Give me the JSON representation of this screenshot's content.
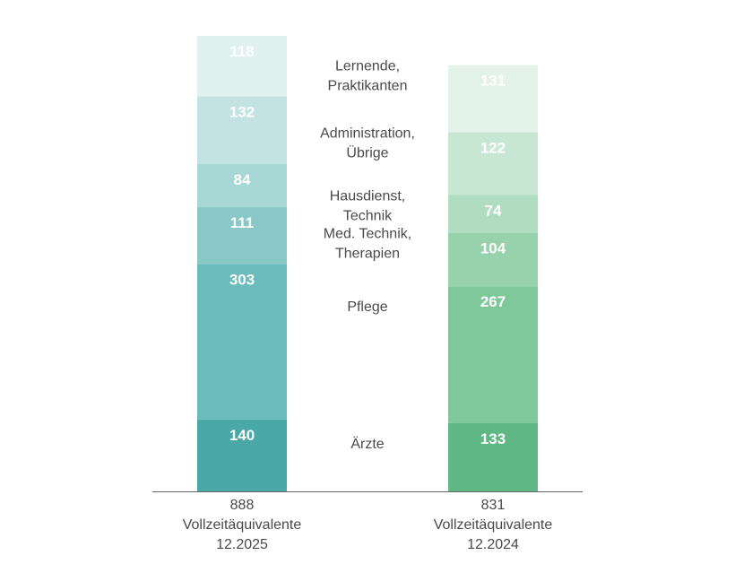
{
  "chart_data": {
    "type": "bar",
    "stacked": true,
    "categories": [
      "Ärzte",
      "Pflege",
      "Med. Technik, Therapien",
      "Hausdienst, Technik",
      "Administration, Übrige",
      "Lernende, Praktikanten"
    ],
    "category_lines": [
      [
        "Ärzte"
      ],
      [
        "Pflege"
      ],
      [
        "Med. Technik,",
        "Therapien"
      ],
      [
        "Hausdienst,",
        "Technik"
      ],
      [
        "Administration,",
        "Übrige"
      ],
      [
        "Lernende,",
        "Praktikanten"
      ]
    ],
    "series": [
      {
        "total": "888",
        "unit": "Vollzeitäquivalente",
        "date": "12.2025",
        "values": [
          140,
          303,
          111,
          84,
          132,
          118
        ],
        "colors": [
          "#4aa8a7",
          "#6bbcbc",
          "#8ac8c7",
          "#a8d8d6",
          "#c2e3e2",
          "#e1f1f0"
        ]
      },
      {
        "total": "831",
        "unit": "Vollzeitäquivalente",
        "date": "12.2024",
        "values": [
          133,
          267,
          104,
          74,
          122,
          131
        ],
        "colors": [
          "#5fb883",
          "#7ec89a",
          "#97d2ad",
          "#b0dcc0",
          "#c8e7d3",
          "#e4f3ea"
        ]
      }
    ],
    "legend": "center",
    "grid": false
  },
  "colors": {
    "text": "#4a4a4a",
    "axis": "#666666",
    "segment_label": "#ffffff"
  }
}
